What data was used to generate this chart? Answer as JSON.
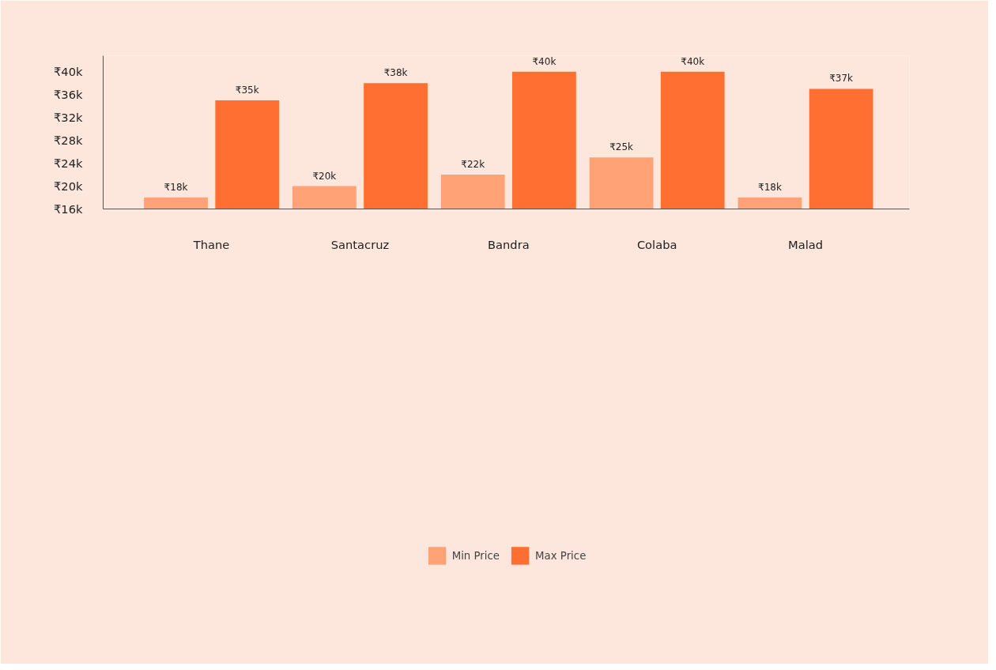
{
  "chart_data": {
    "type": "bar",
    "categories": [
      "Thane",
      "Santacruz",
      "Bandra",
      "Colaba",
      "Malad"
    ],
    "series": [
      {
        "name": "Min Price",
        "color": "#ffa376",
        "values": [
          18,
          20,
          22,
          25,
          18
        ],
        "value_labels": [
          "₹18k",
          "₹20k",
          "₹22k",
          "₹25k",
          "₹18k"
        ]
      },
      {
        "name": "Max Price",
        "color": "#ff6f31",
        "values": [
          35,
          38,
          40,
          40,
          37
        ],
        "value_labels": [
          "₹35k",
          "₹38k",
          "₹40k",
          "₹40k",
          "₹37k"
        ]
      }
    ],
    "ylim": [
      16,
      42.8
    ],
    "yticks": [
      {
        "value": 16,
        "label": "₹16k"
      },
      {
        "value": 20,
        "label": "₹20k"
      },
      {
        "value": 24,
        "label": "₹24k"
      },
      {
        "value": 28,
        "label": "₹28k"
      },
      {
        "value": 32,
        "label": "₹32k"
      },
      {
        "value": 36,
        "label": "₹36k"
      },
      {
        "value": 40,
        "label": "₹40k"
      }
    ],
    "grid": false,
    "legend": "bottom"
  }
}
